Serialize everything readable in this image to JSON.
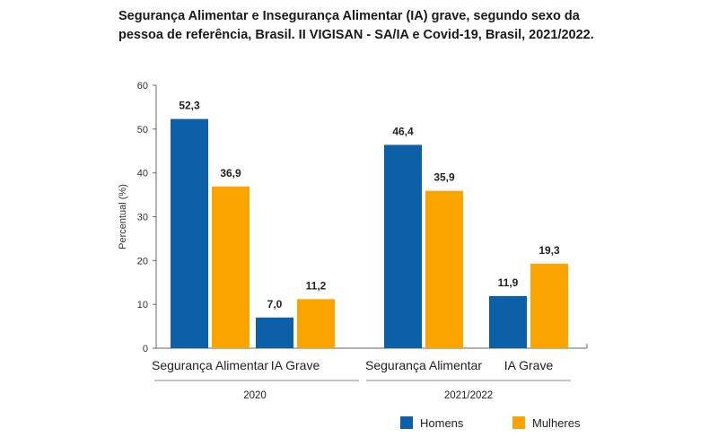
{
  "chart_data": {
    "type": "bar",
    "title": "Segurança Alimentar e Insegurança Alimentar (IA) grave, segundo sexo da pessoa de referência, Brasil. II VIGISAN - SA/IA e Covid-19, Brasil, 2021/2022.",
    "ylabel": "Percentual (%)",
    "xlabel": "",
    "ylim": [
      0,
      60
    ],
    "yticks": [
      0,
      10,
      20,
      30,
      40,
      50,
      60
    ],
    "groups": [
      "2020",
      "2021/2022"
    ],
    "categories": [
      "Segurança Alimentar",
      "IA Grave",
      "Segurança Alimentar",
      "IA Grave"
    ],
    "series": [
      {
        "name": "Homens",
        "color": "#0d5fa8",
        "values": [
          52.3,
          7.0,
          46.4,
          11.9
        ],
        "labels": [
          "52,3",
          "7,0",
          "46,4",
          "11,9"
        ]
      },
      {
        "name": "Mulheres",
        "color": "#fba400",
        "values": [
          36.9,
          11.2,
          35.9,
          19.3
        ],
        "labels": [
          "36,9",
          "11,2",
          "35,9",
          "19,3"
        ]
      }
    ],
    "grid": false,
    "legend": "bottom-right"
  }
}
